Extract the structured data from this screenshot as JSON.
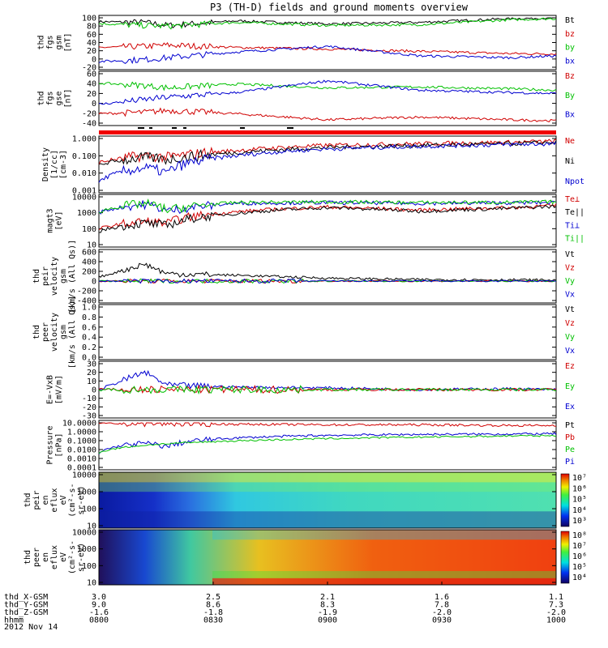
{
  "title": "P3 (TH-D) fields and ground moments overview",
  "panels": [
    {
      "id": "fgs-gsm",
      "label": [
        "thd",
        "fgs",
        "gsm",
        "[nT]"
      ],
      "yticks": [
        "100",
        "80",
        "60",
        "40",
        "20",
        "0",
        "-20"
      ],
      "ylim": [
        -30,
        100
      ],
      "legend": [
        {
          "text": "Bt",
          "color": "#000000"
        },
        {
          "text": "bz",
          "color": "#d00000"
        },
        {
          "text": "by",
          "color": "#00c000"
        },
        {
          "text": "bx",
          "color": "#0000d0"
        }
      ]
    },
    {
      "id": "fgs-gse",
      "label": [
        "thd",
        "fgs",
        "gse",
        "[nT]"
      ],
      "yticks": [
        "60",
        "40",
        "20",
        "0",
        "-20",
        "-40"
      ],
      "ylim": [
        -45,
        60
      ],
      "legend": [
        {
          "text": "Bz",
          "color": "#d00000"
        },
        {
          "text": "By",
          "color": "#00c000"
        },
        {
          "text": "Bx",
          "color": "#0000d0"
        }
      ]
    },
    {
      "id": "density",
      "label": [
        "Density",
        "[1/cc]",
        "[cm-3]"
      ],
      "yticks": [
        "1.000",
        "0.100",
        "0.010",
        "0.001"
      ],
      "ylim": [
        0.001,
        1
      ],
      "legend": [
        {
          "text": "Ne",
          "color": "#d00000"
        },
        {
          "text": "Ni",
          "color": "#000000"
        },
        {
          "text": "Npot",
          "color": "#0000d0"
        }
      ]
    },
    {
      "id": "temperature",
      "label": [
        "magt3",
        "[eV]"
      ],
      "yticks": [
        "10000",
        "1000",
        "100",
        "10"
      ],
      "ylim": [
        5,
        10000
      ],
      "legend": [
        {
          "text": "Te⊥",
          "color": "#d00000"
        },
        {
          "text": "Te||",
          "color": "#000000"
        },
        {
          "text": "Ti⊥",
          "color": "#0000d0"
        },
        {
          "text": "Ti||",
          "color": "#00c000"
        }
      ]
    },
    {
      "id": "peir-velocity",
      "label": [
        "thd",
        "peir",
        "velocity",
        "gsm",
        "[km/s (All Qs)]"
      ],
      "yticks": [
        "600",
        "400",
        "200",
        "0",
        "-200",
        "-400"
      ],
      "ylim": [
        -400,
        600
      ],
      "legend": [
        {
          "text": "Vt",
          "color": "#000000"
        },
        {
          "text": "Vz",
          "color": "#d00000"
        },
        {
          "text": "Vy",
          "color": "#00c000"
        },
        {
          "text": "Vx",
          "color": "#0000d0"
        }
      ]
    },
    {
      "id": "peer-velocity",
      "label": [
        "thd",
        "peer",
        "velocity",
        "gsm",
        "[km/s (All Qs)]"
      ],
      "yticks": [
        "1.0",
        "0.8",
        "0.6",
        "0.4",
        "0.2",
        "0.0"
      ],
      "ylim": [
        0,
        1
      ],
      "legend": [
        {
          "text": "Vt",
          "color": "#000000"
        },
        {
          "text": "Vz",
          "color": "#d00000"
        },
        {
          "text": "Vy",
          "color": "#00c000"
        },
        {
          "text": "Vx",
          "color": "#0000d0"
        }
      ]
    },
    {
      "id": "efield",
      "label": [
        "E=-VxB",
        "[mV/m]"
      ],
      "yticks": [
        "30",
        "20",
        "10",
        "0",
        "-10",
        "-20",
        "-30"
      ],
      "ylim": [
        -30,
        30
      ],
      "legend": [
        {
          "text": "Ez",
          "color": "#d00000"
        },
        {
          "text": "Ey",
          "color": "#00c000"
        },
        {
          "text": "Ex",
          "color": "#0000d0"
        }
      ]
    },
    {
      "id": "pressure",
      "label": [
        "Pressure",
        "[nPa]"
      ],
      "yticks": [
        "10.0000",
        "1.0000",
        "0.1000",
        "0.0100",
        "0.0010",
        "0.0001"
      ],
      "ylim": [
        0.0001,
        10
      ],
      "legend": [
        {
          "text": "Pt",
          "color": "#000000"
        },
        {
          "text": "Pb",
          "color": "#d00000"
        },
        {
          "text": "Pe",
          "color": "#00c000"
        },
        {
          "text": "Pi",
          "color": "#0000d0"
        }
      ]
    },
    {
      "id": "peir-eflux",
      "label": [
        "thd",
        "peir",
        "en",
        "eflux",
        "eV",
        "(cm²-s-",
        "sr-eV)"
      ],
      "yticks": [
        "10000",
        "1000",
        "100",
        "10"
      ],
      "ylim": [
        10,
        20000
      ],
      "colorbar": [
        "10⁷",
        "10⁶",
        "10⁵",
        "10⁴",
        "10³"
      ]
    },
    {
      "id": "peer-eflux",
      "label": [
        "thd",
        "peer",
        "en",
        "eflux",
        "eV",
        "(cm²-s-",
        "sr-eV)"
      ],
      "yticks": [
        "10000",
        "1000",
        "100",
        "10"
      ],
      "ylim": [
        10,
        20000
      ],
      "colorbar": [
        "10⁸",
        "10⁷",
        "10⁶",
        "10⁵",
        "10⁴"
      ]
    }
  ],
  "xaxis": {
    "rows": [
      {
        "label": "thd_X-GSM",
        "values": [
          "3.0",
          "2.5",
          "2.1",
          "1.6",
          "1.1"
        ]
      },
      {
        "label": "thd_Y-GSM",
        "values": [
          "9.0",
          "8.6",
          "8.3",
          "7.8",
          "7.3"
        ]
      },
      {
        "label": "thd_Z-GSM",
        "values": [
          "-1.6",
          "-1.8",
          "-1.9",
          "-2.0",
          "-2.0"
        ]
      },
      {
        "label": "hhmm",
        "values": [
          "0800",
          "0830",
          "0900",
          "0930",
          "1000"
        ]
      }
    ],
    "date": "2012 Nov 14"
  },
  "colors": {
    "black": "#000000",
    "red": "#d00000",
    "green": "#00c000",
    "blue": "#0000d0"
  },
  "chart_data": {
    "type": "line",
    "title": "P3 (TH-D) fields and ground moments overview",
    "time_range": [
      "0800",
      "1000"
    ],
    "x_categories": [
      "0800",
      "0830",
      "0900",
      "0930",
      "1000"
    ],
    "series": [
      {
        "panel": "fgs-gsm",
        "name": "Bt",
        "x": [
          0,
          0.1,
          0.15,
          0.3,
          0.5,
          0.7,
          0.9,
          1.0
        ],
        "values": [
          90,
          88,
          80,
          92,
          84,
          88,
          98,
          100
        ]
      },
      {
        "panel": "fgs-gsm",
        "name": "bz",
        "x": [
          0,
          0.1,
          0.15,
          0.3,
          0.5,
          0.7,
          0.9,
          1.0
        ],
        "values": [
          22,
          25,
          28,
          22,
          18,
          12,
          6,
          5
        ]
      },
      {
        "panel": "fgs-gsm",
        "name": "by",
        "x": [
          0,
          0.1,
          0.15,
          0.3,
          0.5,
          0.7,
          0.9,
          1.0
        ],
        "values": [
          85,
          80,
          78,
          88,
          80,
          82,
          95,
          98
        ]
      },
      {
        "panel": "fgs-gsm",
        "name": "bx",
        "x": [
          0,
          0.1,
          0.15,
          0.3,
          0.5,
          0.7,
          0.9,
          1.0
        ],
        "values": [
          -15,
          -10,
          -5,
          10,
          25,
          0,
          -5,
          0
        ]
      },
      {
        "panel": "fgs-gse",
        "name": "Bz",
        "x": [
          0,
          0.1,
          0.15,
          0.3,
          0.5,
          0.7,
          0.9,
          1.0
        ],
        "values": [
          -25,
          -22,
          -18,
          -25,
          -38,
          -32,
          -38,
          -40
        ]
      },
      {
        "panel": "fgs-gse",
        "name": "By",
        "x": [
          0,
          0.1,
          0.15,
          0.3,
          0.5,
          0.7,
          0.9,
          1.0
        ],
        "values": [
          40,
          35,
          30,
          38,
          30,
          32,
          28,
          25
        ]
      },
      {
        "panel": "fgs-gse",
        "name": "Bx",
        "x": [
          0,
          0.1,
          0.15,
          0.3,
          0.5,
          0.7,
          0.9,
          1.0
        ],
        "values": [
          -5,
          5,
          10,
          20,
          45,
          25,
          20,
          18
        ]
      },
      {
        "panel": "density",
        "name": "Ne",
        "x": [
          0,
          0.1,
          0.15,
          0.3,
          0.5,
          0.7,
          0.9,
          1.0
        ],
        "values": [
          0.04,
          0.1,
          0.08,
          0.2,
          0.4,
          0.5,
          0.6,
          0.7
        ]
      },
      {
        "panel": "density",
        "name": "Ni",
        "x": [
          0,
          0.1,
          0.15,
          0.3,
          0.5,
          0.7,
          0.9,
          1.0
        ],
        "values": [
          0.03,
          0.08,
          0.06,
          0.15,
          0.3,
          0.4,
          0.5,
          0.6
        ]
      },
      {
        "panel": "density",
        "name": "Npot",
        "x": [
          0,
          0.1,
          0.15,
          0.3,
          0.5,
          0.7,
          0.9,
          1.0
        ],
        "values": [
          0.003,
          0.02,
          0.01,
          0.1,
          0.25,
          0.35,
          0.45,
          0.5
        ]
      },
      {
        "panel": "temperature",
        "name": "Te⊥",
        "x": [
          0,
          0.1,
          0.15,
          0.3,
          0.5,
          0.7,
          0.9,
          1.0
        ],
        "values": [
          60,
          200,
          150,
          900,
          2000,
          1200,
          1800,
          2500
        ]
      },
      {
        "panel": "temperature",
        "name": "Te||",
        "x": [
          0,
          0.1,
          0.15,
          0.3,
          0.5,
          0.7,
          0.9,
          1.0
        ],
        "values": [
          40,
          150,
          100,
          700,
          1800,
          1000,
          1600,
          2200
        ]
      },
      {
        "panel": "temperature",
        "name": "Ti⊥",
        "x": [
          0,
          0.1,
          0.15,
          0.3,
          0.5,
          0.7,
          0.9,
          1.0
        ],
        "values": [
          800,
          3000,
          1000,
          3500,
          4000,
          3500,
          3800,
          4000
        ]
      },
      {
        "panel": "temperature",
        "name": "Ti||",
        "x": [
          0,
          0.1,
          0.15,
          0.3,
          0.5,
          0.7,
          0.9,
          1.0
        ],
        "values": [
          900,
          3500,
          1200,
          4000,
          4500,
          4000,
          4200,
          4500
        ]
      },
      {
        "panel": "peir-velocity",
        "name": "Vt",
        "x": [
          0,
          0.1,
          0.15,
          0.3,
          0.5,
          0.7,
          0.9,
          1.0
        ],
        "values": [
          80,
          350,
          150,
          120,
          60,
          30,
          25,
          20
        ]
      },
      {
        "panel": "efield",
        "name": "Ey",
        "x": [
          0,
          0.1,
          0.15,
          0.3,
          0.5,
          0.7,
          0.9,
          1.0
        ],
        "values": [
          0,
          20,
          5,
          3,
          2,
          0,
          1,
          0
        ]
      },
      {
        "panel": "pressure",
        "name": "Pi",
        "x": [
          0,
          0.1,
          0.15,
          0.3,
          0.5,
          0.7,
          0.9,
          1.0
        ],
        "values": [
          0.003,
          0.05,
          0.02,
          0.2,
          0.4,
          0.5,
          0.55,
          0.6
        ]
      },
      {
        "panel": "pressure",
        "name": "Pb",
        "x": [
          0,
          0.1,
          0.15,
          0.3,
          0.5,
          0.7,
          0.9,
          1.0
        ],
        "values": [
          8,
          8,
          8,
          7,
          6,
          6,
          5,
          5
        ]
      }
    ]
  }
}
